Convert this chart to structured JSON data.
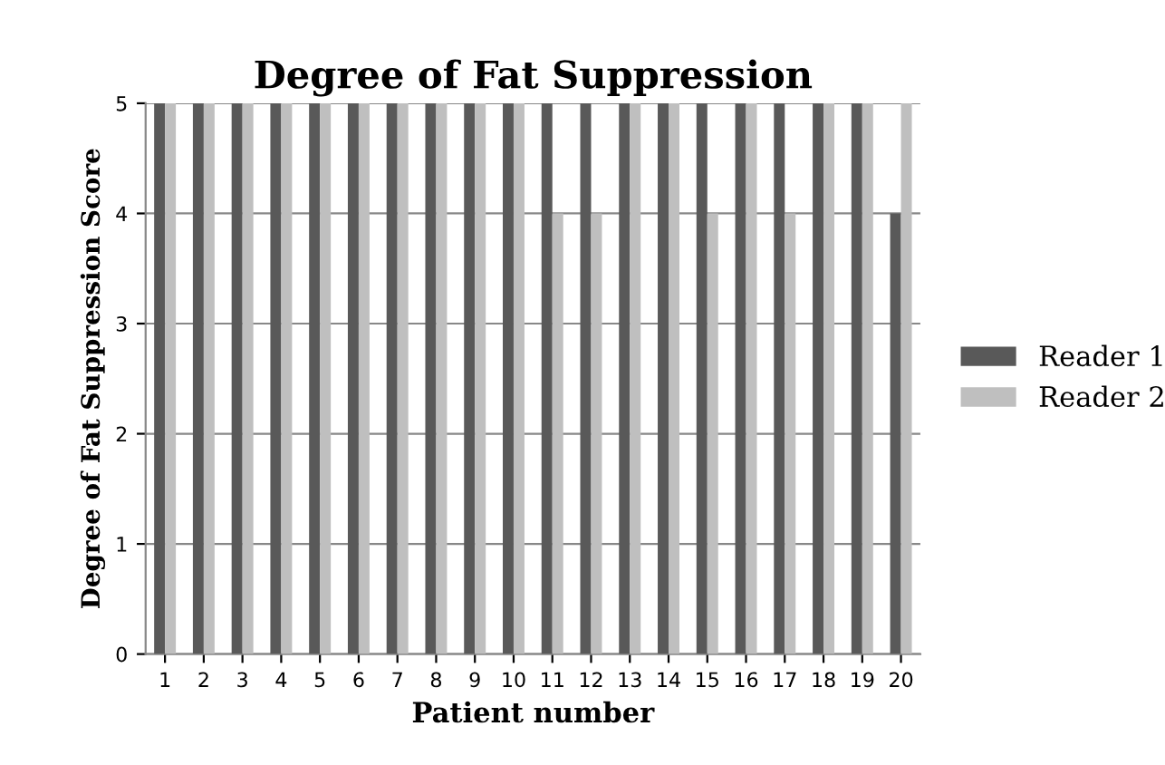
{
  "chart_data": {
    "type": "bar",
    "title": "Degree of Fat Suppression",
    "xlabel": "Patient number",
    "ylabel": "Degree of Fat Suppression Score",
    "categories": [
      "1",
      "2",
      "3",
      "4",
      "5",
      "6",
      "7",
      "8",
      "9",
      "10",
      "11",
      "12",
      "13",
      "14",
      "15",
      "16",
      "17",
      "18",
      "19",
      "20"
    ],
    "series": [
      {
        "name": "Reader 1",
        "color": "#595959",
        "values": [
          5,
          5,
          5,
          5,
          5,
          5,
          5,
          5,
          5,
          5,
          5,
          5,
          5,
          5,
          5,
          5,
          5,
          5,
          5,
          4
        ]
      },
      {
        "name": "Reader 2",
        "color": "#bfbfbf",
        "values": [
          5,
          5,
          5,
          5,
          5,
          5,
          5,
          5,
          5,
          5,
          4,
          4,
          5,
          5,
          4,
          5,
          4,
          5,
          5,
          5
        ]
      }
    ],
    "ylim": [
      0,
      5
    ],
    "yticks": [
      0,
      1,
      2,
      3,
      4,
      5
    ],
    "grid": "y",
    "legend": "right"
  }
}
